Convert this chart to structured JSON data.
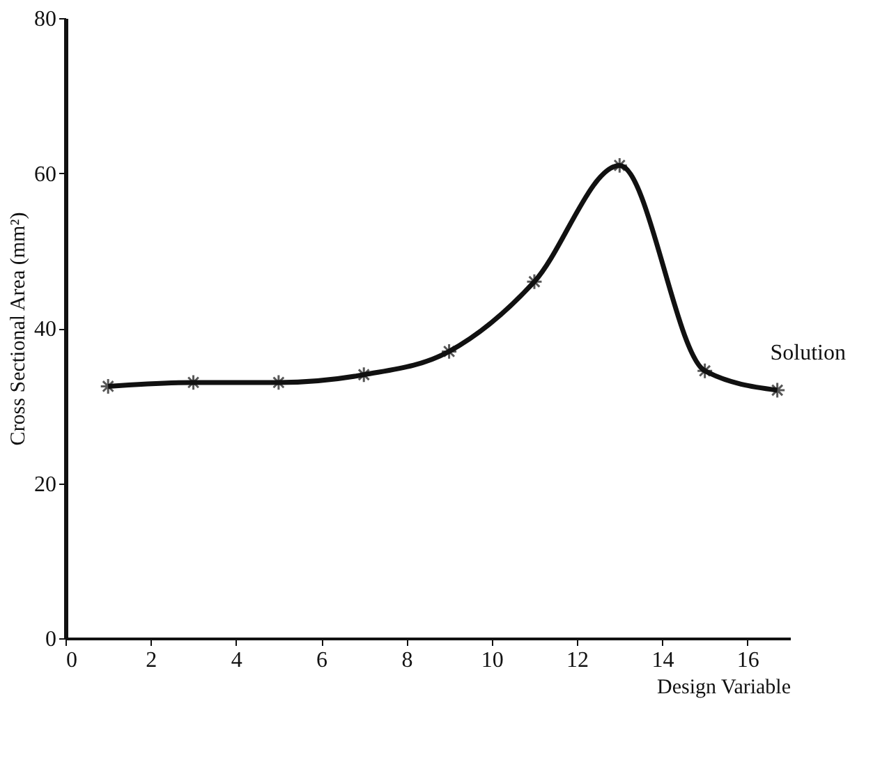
{
  "chart_data": {
    "type": "line",
    "xlabel": "Design Variable",
    "ylabel": "Cross Sectional Area (mm²)",
    "x": [
      1,
      3,
      5,
      7,
      9,
      11,
      13,
      15,
      16.7
    ],
    "series": [
      {
        "color": "#111111",
        "values": [
          32.5,
          33,
          33,
          34,
          37,
          46,
          61,
          34.5,
          32
        ]
      }
    ],
    "xlim": [
      0,
      17
    ],
    "xticks": [
      0,
      2,
      4,
      6,
      8,
      10,
      12,
      14,
      16
    ],
    "ylim": [
      0,
      80
    ],
    "yticks": [
      0,
      20,
      40,
      60,
      80
    ],
    "grid": false,
    "marker": "cross",
    "line_style": "solid",
    "annotations": [
      "Solution"
    ]
  }
}
